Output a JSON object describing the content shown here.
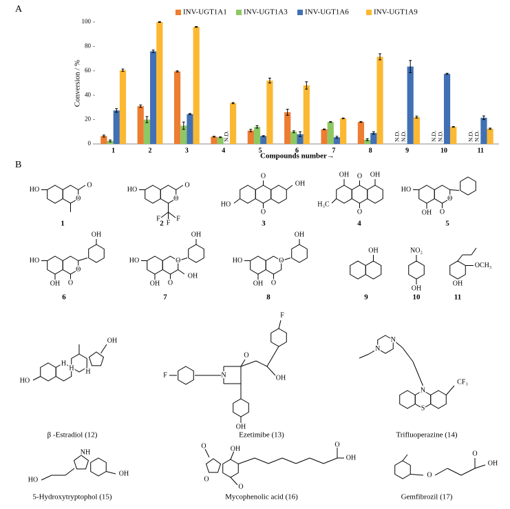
{
  "panel_labels": [
    "A",
    "B"
  ],
  "chart_data": {
    "type": "bar",
    "x_label": "Compounds number→",
    "y_label": "Conversion / %",
    "categories": [
      "1",
      "2",
      "3",
      "4",
      "5",
      "6",
      "7",
      "8",
      "9",
      "10",
      "11"
    ],
    "ylim": [
      0,
      100
    ],
    "yticks": [
      0,
      20,
      40,
      60,
      80,
      100
    ],
    "grid": false,
    "series": [
      {
        "name": "INV-UGT1A1",
        "color": "#ed7d31",
        "values": [
          6.5,
          31,
          59.5,
          6,
          11,
          26,
          12,
          18,
          null,
          null,
          null
        ],
        "errors": [
          0.8,
          1,
          0.5,
          0.3,
          1,
          2.5,
          0.3,
          0.3,
          null,
          null,
          null
        ],
        "value_labels": [
          null,
          null,
          null,
          null,
          null,
          null,
          null,
          null,
          "N.D.",
          "N.D.",
          "N.D."
        ]
      },
      {
        "name": "INV-UGT1A3",
        "color": "#8dc863",
        "values": [
          2.5,
          20,
          15,
          5.5,
          14,
          10,
          18,
          3.5,
          null,
          null,
          null
        ],
        "errors": [
          0.8,
          2.5,
          3,
          0.3,
          1,
          0.8,
          0.3,
          0.8,
          null,
          null,
          null
        ],
        "value_labels": [
          null,
          null,
          null,
          null,
          null,
          null,
          null,
          null,
          "N.D.",
          "N.D.",
          "N.D."
        ]
      },
      {
        "name": "INV-UGT1A6",
        "color": "#4170b5",
        "values": [
          27.5,
          76,
          24.5,
          null,
          6.5,
          8,
          5.5,
          9,
          63.5,
          57.5,
          21.5
        ],
        "errors": [
          1.5,
          1,
          0.5,
          null,
          0.3,
          2,
          0.8,
          1,
          5,
          0.5,
          1.5
        ],
        "value_labels": [
          null,
          null,
          null,
          "N.D.",
          null,
          null,
          null,
          null,
          null,
          null,
          null
        ]
      },
      {
        "name": "INV-UGT1A9",
        "color": "#fbb832",
        "values": [
          60.5,
          100,
          96,
          33.5,
          52,
          48,
          21,
          71.5,
          22,
          14,
          12.5
        ],
        "errors": [
          1,
          0.3,
          0.3,
          0.5,
          2,
          3,
          0.3,
          2.5,
          0.8,
          0.3,
          0.5
        ]
      }
    ]
  },
  "structures": [
    {
      "label": "1",
      "atoms": [
        "HO",
        "O",
        "O"
      ]
    },
    {
      "label": "2",
      "atoms": [
        "HO",
        "O",
        "O",
        "F",
        "F",
        "F"
      ]
    },
    {
      "label": "3",
      "atoms": [
        "O",
        "O",
        "HO",
        "OH"
      ]
    },
    {
      "label": "4",
      "atoms": [
        "OH",
        "O",
        "OH",
        "H₃C",
        "O"
      ]
    },
    {
      "label": "5",
      "atoms": [
        "HO",
        "O",
        "OH",
        "O"
      ]
    },
    {
      "label": "6",
      "atoms": [
        "OH",
        "HO",
        "O",
        "OH",
        "O"
      ]
    },
    {
      "label": "7",
      "atoms": [
        "OH",
        "HO",
        "O",
        "OH",
        "O",
        "OH"
      ]
    },
    {
      "label": "8",
      "atoms": [
        "OH",
        "HO",
        "O",
        "OH",
        "O"
      ]
    },
    {
      "label": "9",
      "atoms": [
        "OH"
      ]
    },
    {
      "label": "10",
      "atoms": [
        "NO₂",
        "OH"
      ]
    },
    {
      "label": "11",
      "atoms": [
        "OCH₃",
        "OH"
      ]
    },
    {
      "label": "β -Estradiol (12)",
      "atoms": [
        "HO",
        "OH",
        "H",
        "H",
        "H"
      ]
    },
    {
      "label": "Ezetimibe (13)",
      "atoms": [
        "F",
        "N",
        "O",
        "OH",
        "OH",
        "F"
      ]
    },
    {
      "label": "Trifluoperazine (14)",
      "atoms": [
        "N",
        "N",
        "N",
        "CF₃",
        "S"
      ]
    },
    {
      "label": "5-Hydroxytryptophol (15)",
      "atoms": [
        "HO",
        "NH",
        "OH"
      ]
    },
    {
      "label": "Mycophenolic acid (16)",
      "atoms": [
        "O",
        "O",
        "OH",
        "O",
        "O",
        "OH"
      ]
    },
    {
      "label": "Gemfibrozil (17)",
      "atoms": [
        "O",
        "O",
        "OH"
      ]
    }
  ]
}
